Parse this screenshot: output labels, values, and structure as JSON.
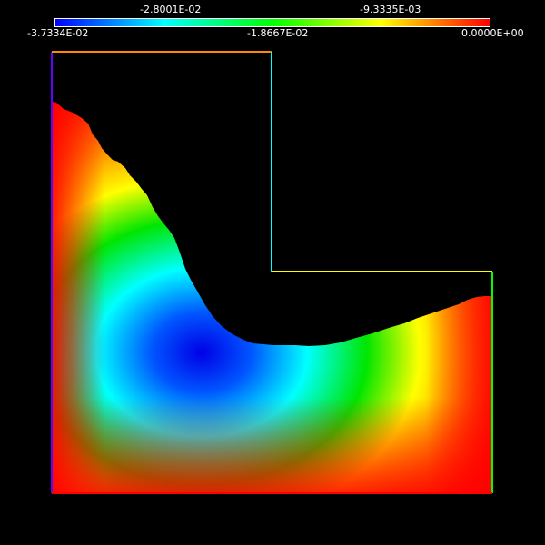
{
  "colorbar": {
    "labels_top": [
      "-2.8001E-02",
      "-9.3335E-03"
    ],
    "labels_bottom": [
      "-3.7334E-02",
      "-1.8667E-02",
      "0.0000E+00"
    ],
    "min": -0.037334,
    "max": 0.0,
    "colormap": [
      "#0000ff",
      "#00ffff",
      "#00ff00",
      "#ffff00",
      "#ff0000"
    ]
  },
  "colors": {
    "background": "#000000",
    "boundary_left": "#6600ff",
    "boundary_top": "#ff8800",
    "boundary_inner_vertical": "#00ffff",
    "boundary_inner_horizontal": "#ffff00",
    "boundary_right": "#00ff00",
    "boundary_bottom": "#ff0000"
  }
}
